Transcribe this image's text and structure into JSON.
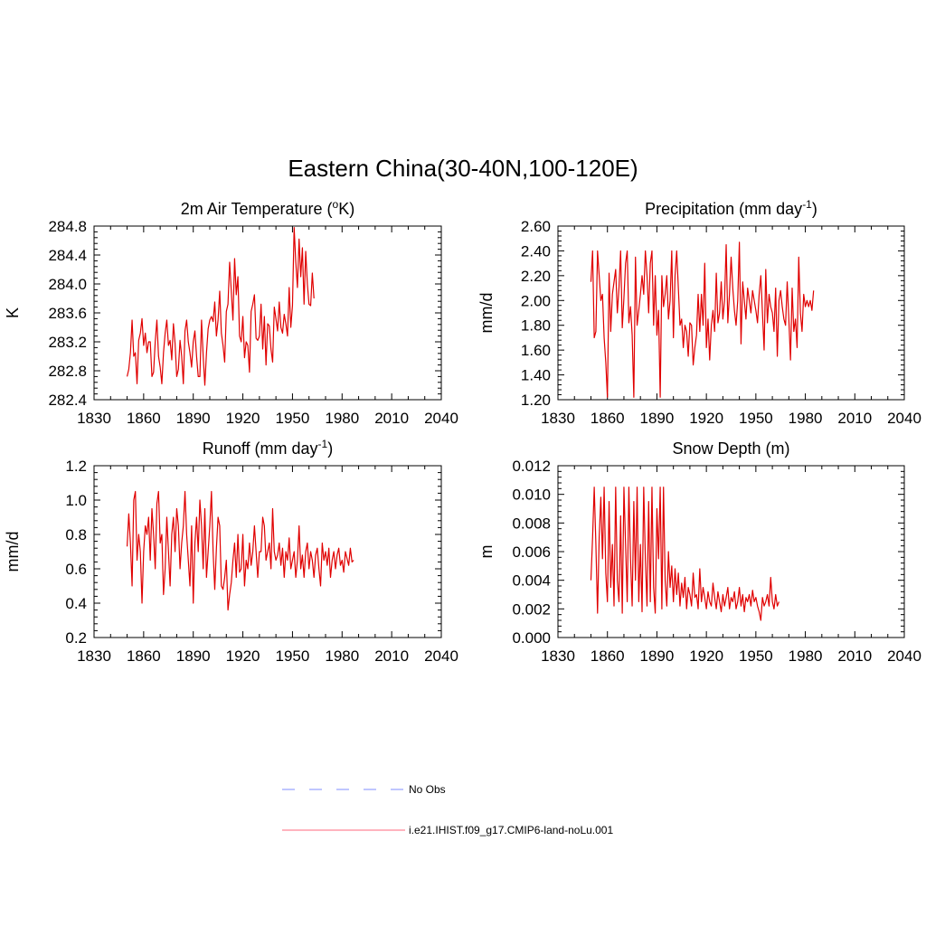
{
  "page_title": "Eastern China(30-40N,100-120E)",
  "legend": {
    "items": [
      {
        "label": "No Obs",
        "color": "#aab3ff",
        "dash": "dashed"
      },
      {
        "label": "i.e21.IHIST.f09_g17.CMIP6-land-noLu.001",
        "color": "#ff9aa8",
        "dash": "solid"
      }
    ]
  },
  "chart_data": [
    {
      "type": "line",
      "title_main": "2m Air Temperature (",
      "title_sup": "o",
      "title_tail": "K)",
      "ylabel": "K",
      "xlim": [
        1830,
        2040
      ],
      "ylim": [
        282.4,
        284.8
      ],
      "xticks": [
        "1830",
        "1860",
        "1890",
        "1920",
        "1950",
        "1980",
        "2010",
        "2040"
      ],
      "yticks": [
        "282.4",
        "282.8",
        "283.2",
        "283.6",
        "284.0",
        "284.4",
        "284.8"
      ],
      "series_color": "#e00000",
      "x_start": 1850,
      "y": [
        282.72,
        282.82,
        283.05,
        283.5,
        283.0,
        283.05,
        282.62,
        283.22,
        283.32,
        283.52,
        283.15,
        283.32,
        283.05,
        283.2,
        283.2,
        282.72,
        282.78,
        283.2,
        283.5,
        283.0,
        282.85,
        282.62,
        283.05,
        283.32,
        283.5,
        283.15,
        283.22,
        282.95,
        283.45,
        283.18,
        282.72,
        282.82,
        283.22,
        283.0,
        282.62,
        283.35,
        283.5,
        283.2,
        283.05,
        282.85,
        283.2,
        283.35,
        283.0,
        282.72,
        282.72,
        283.5,
        283.0,
        282.6,
        283.05,
        283.38,
        283.5,
        283.55,
        283.48,
        283.75,
        283.28,
        283.5,
        283.9,
        283.32,
        283.15,
        282.92,
        283.62,
        283.72,
        284.3,
        283.9,
        283.5,
        284.35,
        283.85,
        284.1,
        283.28,
        283.2,
        283.55,
        282.98,
        283.2,
        283.15,
        282.78,
        283.62,
        283.72,
        283.85,
        283.25,
        283.22,
        283.28,
        283.72,
        283.1,
        283.55,
        282.88,
        283.45,
        283.42,
        283.1,
        282.92,
        283.68,
        283.52,
        283.35,
        283.75,
        283.4,
        283.32,
        283.58,
        283.45,
        283.28,
        283.95,
        283.4,
        283.7,
        284.78,
        284.3,
        283.95,
        284.62,
        284.1,
        284.5,
        283.72,
        284.45,
        284.0,
        283.72,
        283.7,
        284.15,
        283.8
      ]
    },
    {
      "type": "line",
      "title_main": "Precipitation (mm day",
      "title_sup": "-1",
      "title_tail": ")",
      "ylabel": "mm/d",
      "xlim": [
        1830,
        2040
      ],
      "ylim": [
        1.2,
        2.6
      ],
      "xticks": [
        "1830",
        "1860",
        "1890",
        "1920",
        "1950",
        "1980",
        "2010",
        "2040"
      ],
      "yticks": [
        "1.20",
        "1.40",
        "1.60",
        "1.80",
        "2.00",
        "2.20",
        "2.40",
        "2.60"
      ],
      "series_color": "#e00000",
      "x_start": 1850,
      "y": [
        2.15,
        2.4,
        1.7,
        1.75,
        2.4,
        2.2,
        2.0,
        2.05,
        1.7,
        1.5,
        1.22,
        2.22,
        1.75,
        2.05,
        2.15,
        2.25,
        1.9,
        2.1,
        2.4,
        1.78,
        2.02,
        2.3,
        2.4,
        1.82,
        1.95,
        1.72,
        1.22,
        2.35,
        1.8,
        1.92,
        2.05,
        2.2,
        2.05,
        2.4,
        2.2,
        1.9,
        2.3,
        2.4,
        1.8,
        2.2,
        1.72,
        1.92,
        1.22,
        2.2,
        1.95,
        2.05,
        2.2,
        1.85,
        2.0,
        2.4,
        1.7,
        2.2,
        2.4,
        2.1,
        1.8,
        1.85,
        1.62,
        1.8,
        1.75,
        1.55,
        1.82,
        1.8,
        1.48,
        1.62,
        1.72,
        2.05,
        1.75,
        2.05,
        1.8,
        2.3,
        1.62,
        1.85,
        1.52,
        1.8,
        1.92,
        1.75,
        2.22,
        1.82,
        1.9,
        2.15,
        1.85,
        2.0,
        2.45,
        1.82,
        2.05,
        2.35,
        2.1,
        1.92,
        1.8,
        2.0,
        2.47,
        1.65,
        2.15,
        2.0,
        1.85,
        2.1,
        2.0,
        1.9,
        2.08,
        2.0,
        1.92,
        1.82,
        2.05,
        2.2,
        1.9,
        1.6,
        2.25,
        1.82,
        2.05,
        1.95,
        1.9,
        1.75,
        2.1,
        1.55,
        2.0,
        2.08,
        1.95,
        1.85,
        1.8,
        2.15,
        1.85,
        1.52,
        2.1,
        1.75,
        1.85,
        1.62,
        2.35,
        1.9,
        1.75,
        2.05,
        1.95,
        2.0,
        1.95,
        2.0,
        1.92,
        2.08
      ]
    },
    {
      "type": "line",
      "title_main": "Runoff (mm day",
      "title_sup": "-1",
      "title_tail": ")",
      "ylabel": "mm/d",
      "xlim": [
        1830,
        2040
      ],
      "ylim": [
        0.2,
        1.2
      ],
      "xticks": [
        "1830",
        "1860",
        "1890",
        "1920",
        "1950",
        "1980",
        "2010",
        "2040"
      ],
      "yticks": [
        "0.2",
        "0.4",
        "0.6",
        "0.8",
        "1.0",
        "1.2"
      ],
      "series_color": "#e00000",
      "x_start": 1850,
      "y": [
        0.73,
        0.92,
        0.75,
        0.5,
        1.0,
        1.05,
        0.65,
        0.8,
        0.7,
        0.4,
        0.7,
        0.85,
        0.8,
        0.9,
        0.65,
        0.95,
        0.8,
        0.6,
        0.98,
        1.05,
        0.75,
        0.8,
        0.45,
        0.6,
        0.9,
        0.7,
        0.5,
        0.8,
        0.9,
        0.7,
        0.95,
        0.85,
        0.6,
        0.75,
        0.85,
        1.05,
        0.8,
        0.65,
        0.5,
        0.85,
        0.4,
        0.75,
        0.9,
        0.7,
        1.0,
        0.85,
        0.6,
        0.95,
        0.55,
        0.7,
        0.85,
        1.05,
        0.7,
        0.48,
        0.72,
        0.9,
        0.85,
        0.5,
        0.48,
        0.55,
        0.65,
        0.36,
        0.45,
        0.52,
        0.65,
        0.75,
        0.55,
        0.8,
        0.58,
        0.6,
        0.8,
        0.5,
        0.65,
        0.6,
        0.75,
        0.62,
        0.7,
        0.85,
        0.7,
        0.55,
        0.7,
        0.7,
        0.9,
        0.85,
        0.65,
        0.7,
        0.75,
        0.6,
        0.95,
        0.7,
        0.65,
        0.68,
        0.75,
        0.62,
        0.72,
        0.55,
        0.7,
        0.65,
        0.78,
        0.6,
        0.65,
        0.7,
        0.55,
        0.65,
        0.85,
        0.6,
        0.68,
        0.55,
        0.7,
        0.75,
        0.6,
        0.7,
        0.65,
        0.55,
        0.68,
        0.72,
        0.6,
        0.5,
        0.75,
        0.65,
        0.7,
        0.62,
        0.72,
        0.55,
        0.65,
        0.7,
        0.6,
        0.68,
        0.72,
        0.62,
        0.65,
        0.58,
        0.7,
        0.66,
        0.62,
        0.72,
        0.64,
        0.65
      ]
    },
    {
      "type": "line",
      "title_main": "Snow Depth (m)",
      "title_sup": "",
      "title_tail": "",
      "ylabel": "m",
      "xlim": [
        1830,
        2040
      ],
      "ylim": [
        0.0,
        0.012
      ],
      "xticks": [
        "1830",
        "1860",
        "1890",
        "1920",
        "1950",
        "1980",
        "2010",
        "2040"
      ],
      "yticks": [
        "0.000",
        "0.002",
        "0.004",
        "0.006",
        "0.008",
        "0.010",
        "0.012"
      ],
      "series_color": "#e00000",
      "x_start": 1850,
      "y": [
        0.004,
        0.007,
        0.0105,
        0.0065,
        0.0017,
        0.007,
        0.0098,
        0.0055,
        0.0105,
        0.0045,
        0.0025,
        0.0095,
        0.0035,
        0.0065,
        0.0022,
        0.0105,
        0.004,
        0.0025,
        0.0085,
        0.0017,
        0.0105,
        0.0065,
        0.0025,
        0.0105,
        0.0055,
        0.0022,
        0.0095,
        0.004,
        0.0105,
        0.0025,
        0.0065,
        0.0018,
        0.0105,
        0.0055,
        0.0022,
        0.0095,
        0.0025,
        0.0105,
        0.0035,
        0.0017,
        0.009,
        0.0055,
        0.0105,
        0.002,
        0.0105,
        0.004,
        0.0022,
        0.006,
        0.0035,
        0.005,
        0.0025,
        0.0048,
        0.003,
        0.0045,
        0.0022,
        0.0038,
        0.0028,
        0.0042,
        0.002,
        0.0035,
        0.003,
        0.0022,
        0.0045,
        0.0028,
        0.003,
        0.002,
        0.0048,
        0.0025,
        0.0035,
        0.0028,
        0.002,
        0.0032,
        0.0025,
        0.0022,
        0.0038,
        0.0028,
        0.002,
        0.0032,
        0.0025,
        0.0018,
        0.003,
        0.0022,
        0.0028,
        0.0035,
        0.002,
        0.0028,
        0.0025,
        0.0032,
        0.002,
        0.0025,
        0.0035,
        0.0022,
        0.003,
        0.0018,
        0.0028,
        0.0025,
        0.003,
        0.0022,
        0.0033,
        0.0025,
        0.0028,
        0.0022,
        0.0018,
        0.0012,
        0.0028,
        0.0022,
        0.0025,
        0.003,
        0.0022,
        0.0042,
        0.0025,
        0.002,
        0.003,
        0.0022,
        0.0025
      ]
    }
  ]
}
